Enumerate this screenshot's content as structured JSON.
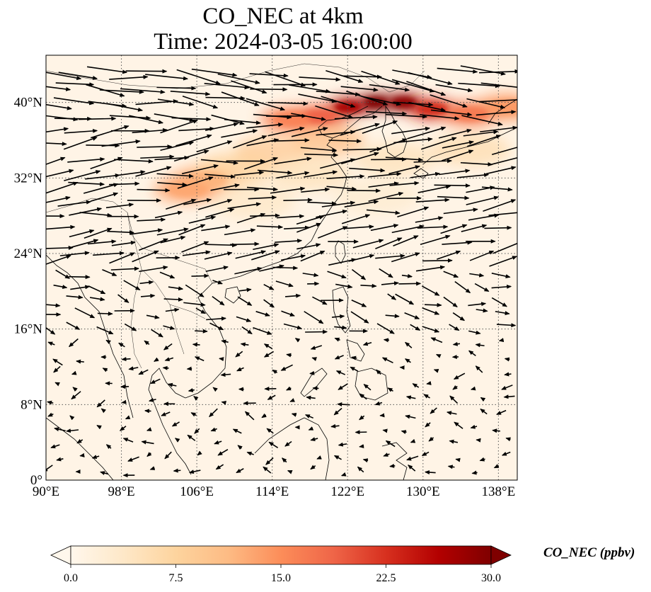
{
  "title": {
    "line1": "CO_NEC at 4km",
    "line2": "Time: 2024-03-05 16:00:00"
  },
  "map": {
    "projection": "PlateCarree",
    "lon_range": [
      90,
      140
    ],
    "lat_range": [
      0,
      45
    ],
    "gridlines": "dotted",
    "lon_ticks": [
      "90°E",
      "98°E",
      "106°E",
      "114°E",
      "122°E",
      "130°E",
      "138°E"
    ],
    "lat_ticks": [
      "0°",
      "8°N",
      "16°N",
      "24°N",
      "32°N",
      "40°N"
    ],
    "lon_tick_values": [
      90,
      98,
      106,
      114,
      122,
      130,
      138
    ],
    "lat_tick_values": [
      0,
      8,
      16,
      24,
      32,
      40
    ],
    "field_variable": "CO_NEC",
    "field_units": "ppbv",
    "wind_vectors": "shown",
    "plume": [
      {
        "lon": 125,
        "lat": 40.0,
        "value": 30
      },
      {
        "lon": 128,
        "lat": 40.0,
        "value": 29
      },
      {
        "lon": 122,
        "lat": 39.5,
        "value": 27
      },
      {
        "lon": 131,
        "lat": 39.3,
        "value": 23
      },
      {
        "lon": 135,
        "lat": 38.8,
        "value": 17
      },
      {
        "lon": 119,
        "lat": 38.5,
        "value": 19
      },
      {
        "lon": 116,
        "lat": 38.2,
        "value": 16
      },
      {
        "lon": 139,
        "lat": 39.5,
        "value": 14
      },
      {
        "lon": 120,
        "lat": 36.0,
        "value": 11
      },
      {
        "lon": 114,
        "lat": 34.8,
        "value": 9
      },
      {
        "lon": 107,
        "lat": 31.8,
        "value": 12
      },
      {
        "lon": 105,
        "lat": 30.8,
        "value": 13
      },
      {
        "lon": 110,
        "lat": 33.0,
        "value": 8
      },
      {
        "lon": 118,
        "lat": 32.5,
        "value": 5
      },
      {
        "lon": 127,
        "lat": 34.0,
        "value": 5
      },
      {
        "lon": 135,
        "lat": 35.0,
        "value": 6
      },
      {
        "lon": 112,
        "lat": 29.5,
        "value": 4
      },
      {
        "lon": 125,
        "lat": 30.0,
        "value": 3
      }
    ]
  },
  "colorbar": {
    "label": "CO_NEC (ppbv)",
    "min": 0,
    "max": 30,
    "extend": "both",
    "ticks": [
      "0.0",
      "7.5",
      "15.0",
      "22.5",
      "30.0"
    ],
    "tick_values": [
      0,
      7.5,
      15,
      22.5,
      30
    ],
    "colormap": "OrRd",
    "colors": [
      "#fff7ec",
      "#fee8c8",
      "#fdd49e",
      "#fdbb84",
      "#fc8d59",
      "#ef6548",
      "#d7301f",
      "#b30000",
      "#7f0000"
    ]
  },
  "colors": {
    "background_field": "#fff4e6",
    "coastline": "#000000",
    "grid": "#555555",
    "arrow": "#000000"
  }
}
